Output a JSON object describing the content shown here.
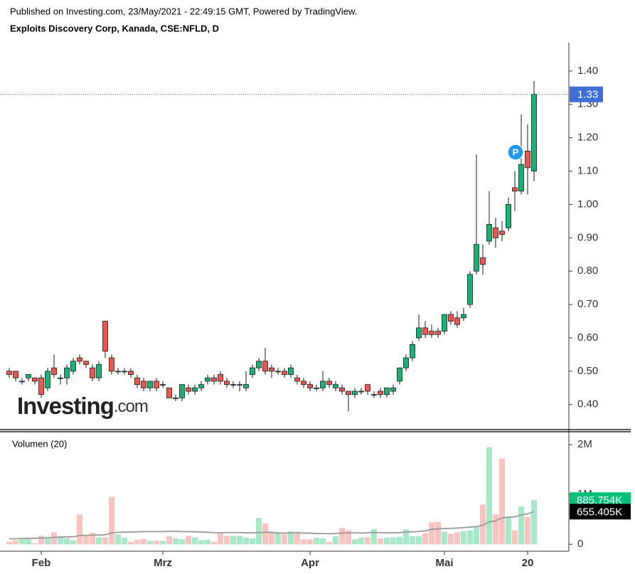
{
  "header": {
    "published": "Published on Investing.com, 23/May/2021 - 22:49:15 GMT, Powered by TradingView.",
    "title": "Exploits Discovery Corp, Kanada, CSE:NFLD, D"
  },
  "logo": {
    "main": "Investing",
    "suffix": ".com"
  },
  "annotation": "P",
  "chart_data": [
    {
      "type": "candlestick",
      "categories": [
        null,
        null,
        null,
        null,
        null,
        "Feb",
        null,
        null,
        null,
        null,
        null,
        null,
        null,
        null,
        null,
        null,
        null,
        null,
        null,
        null,
        null,
        null,
        null,
        null,
        "Mrz",
        null,
        null,
        null,
        null,
        null,
        null,
        null,
        null,
        null,
        null,
        null,
        null,
        null,
        null,
        null,
        null,
        null,
        null,
        null,
        null,
        null,
        null,
        "Apr",
        null,
        null,
        null,
        null,
        null,
        null,
        null,
        null,
        null,
        null,
        null,
        null,
        null,
        null,
        null,
        null,
        null,
        null,
        null,
        null,
        "Mai",
        null,
        null,
        null,
        null,
        null,
        null,
        null,
        null,
        null,
        null,
        null,
        null,
        "20",
        null
      ],
      "open": [
        0.5,
        0.5,
        0.47,
        0.48,
        0.48,
        0.48,
        0.45,
        0.51,
        0.48,
        0.48,
        0.5,
        0.54,
        0.53,
        0.51,
        0.48,
        0.65,
        0.54,
        0.5,
        0.5,
        0.5,
        0.48,
        0.47,
        0.45,
        0.47,
        0.46,
        0.45,
        0.42,
        0.42,
        0.45,
        0.44,
        0.45,
        0.47,
        0.48,
        0.49,
        0.47,
        0.46,
        0.46,
        0.45,
        0.49,
        0.51,
        0.53,
        0.51,
        0.5,
        0.5,
        0.49,
        0.48,
        0.47,
        0.46,
        0.45,
        0.45,
        0.47,
        0.45,
        0.45,
        0.44,
        0.43,
        0.44,
        0.46,
        0.43,
        0.44,
        0.43,
        0.44,
        0.47,
        0.51,
        0.54,
        0.6,
        0.63,
        0.62,
        0.62,
        0.62,
        0.67,
        0.66,
        0.66,
        0.7,
        0.8,
        0.84,
        0.89,
        0.93,
        0.92,
        0.93,
        1.05,
        1.04,
        1.16,
        1.1
      ],
      "high": [
        0.51,
        0.5,
        0.48,
        0.49,
        0.48,
        0.49,
        0.51,
        0.55,
        0.49,
        0.52,
        0.54,
        0.55,
        0.53,
        0.52,
        0.53,
        0.65,
        0.55,
        0.51,
        0.51,
        0.51,
        0.49,
        0.48,
        0.47,
        0.48,
        0.47,
        0.45,
        0.43,
        0.46,
        0.46,
        0.46,
        0.47,
        0.49,
        0.49,
        0.5,
        0.48,
        0.47,
        0.47,
        0.5,
        0.52,
        0.54,
        0.57,
        0.52,
        0.51,
        0.51,
        0.52,
        0.49,
        0.48,
        0.47,
        0.46,
        0.5,
        0.48,
        0.47,
        0.46,
        0.44,
        0.45,
        0.45,
        0.46,
        0.44,
        0.45,
        0.45,
        0.46,
        0.51,
        0.55,
        0.59,
        0.67,
        0.65,
        0.64,
        0.63,
        0.67,
        0.68,
        0.68,
        0.69,
        0.8,
        1.15,
        0.88,
        1.04,
        0.96,
        0.95,
        1.02,
        1.1,
        1.27,
        1.24,
        1.37
      ],
      "low": [
        0.48,
        0.47,
        0.46,
        0.47,
        0.46,
        0.42,
        0.44,
        0.48,
        0.46,
        0.46,
        0.49,
        0.52,
        0.51,
        0.47,
        0.47,
        0.54,
        0.49,
        0.49,
        0.49,
        0.48,
        0.45,
        0.44,
        0.44,
        0.44,
        0.45,
        0.42,
        0.41,
        0.41,
        0.43,
        0.43,
        0.44,
        0.46,
        0.46,
        0.46,
        0.45,
        0.45,
        0.44,
        0.44,
        0.48,
        0.5,
        0.49,
        0.48,
        0.49,
        0.48,
        0.48,
        0.46,
        0.45,
        0.44,
        0.44,
        0.44,
        0.45,
        0.44,
        0.43,
        0.38,
        0.42,
        0.43,
        0.43,
        0.42,
        0.42,
        0.42,
        0.43,
        0.46,
        0.5,
        0.53,
        0.59,
        0.6,
        0.6,
        0.6,
        0.61,
        0.64,
        0.63,
        0.65,
        0.69,
        0.79,
        0.79,
        0.88,
        0.87,
        0.89,
        0.92,
        0.98,
        1.03,
        1.03,
        1.07
      ],
      "close": [
        0.49,
        0.48,
        0.47,
        0.49,
        0.47,
        0.43,
        0.5,
        0.49,
        0.48,
        0.51,
        0.53,
        0.53,
        0.52,
        0.48,
        0.52,
        0.56,
        0.5,
        0.5,
        0.5,
        0.49,
        0.46,
        0.45,
        0.47,
        0.45,
        0.46,
        0.42,
        0.42,
        0.46,
        0.44,
        0.45,
        0.46,
        0.48,
        0.47,
        0.47,
        0.46,
        0.46,
        0.46,
        0.46,
        0.51,
        0.53,
        0.5,
        0.5,
        0.5,
        0.49,
        0.51,
        0.47,
        0.46,
        0.45,
        0.45,
        0.47,
        0.46,
        0.46,
        0.44,
        0.43,
        0.44,
        0.44,
        0.44,
        0.43,
        0.43,
        0.45,
        0.45,
        0.51,
        0.54,
        0.58,
        0.63,
        0.61,
        0.61,
        0.61,
        0.67,
        0.65,
        0.64,
        0.67,
        0.79,
        0.88,
        0.82,
        0.94,
        0.9,
        0.91,
        1.0,
        1.04,
        1.12,
        1.11,
        1.33
      ],
      "up_color": "#17b374",
      "down_color": "#f0554f",
      "ylim": [
        0.327,
        1.485
      ],
      "yticks": [
        {
          "value": 0.4,
          "label": "0.40"
        },
        {
          "value": 0.5,
          "label": "0.50"
        },
        {
          "value": 0.6,
          "label": "0.60"
        },
        {
          "value": 0.7,
          "label": "0.70"
        },
        {
          "value": 0.8,
          "label": "0.80"
        },
        {
          "value": 0.9,
          "label": "0.90"
        },
        {
          "value": 1.0,
          "label": "1.00"
        },
        {
          "value": 1.1,
          "label": "1.10"
        },
        {
          "value": 1.2,
          "label": "1.20"
        },
        {
          "value": 1.3,
          "label": "1.30"
        },
        {
          "value": 1.4,
          "label": "1.40"
        }
      ],
      "last_line_color": "#3d6fd6"
    },
    {
      "type": "bar",
      "title": "Volumen (20)",
      "series": [
        {
          "kind": "bar",
          "up_color": "#a6e9c9",
          "down_color": "#f9c4bf",
          "values": [
            50000,
            80000,
            100000,
            100000,
            20000,
            170000,
            150000,
            240000,
            140000,
            120000,
            80000,
            600000,
            170000,
            230000,
            140000,
            140000,
            950000,
            200000,
            130000,
            50000,
            90000,
            110000,
            70000,
            70000,
            70000,
            160000,
            120000,
            100000,
            170000,
            140000,
            80000,
            90000,
            50000,
            220000,
            170000,
            170000,
            170000,
            130000,
            120000,
            530000,
            420000,
            240000,
            240000,
            200000,
            260000,
            250000,
            100000,
            100000,
            130000,
            120000,
            50000,
            160000,
            330000,
            280000,
            100000,
            130000,
            140000,
            300000,
            120000,
            130000,
            140000,
            150000,
            300000,
            160000,
            160000,
            220000,
            440000,
            450000,
            250000,
            210000,
            240000,
            260000,
            280000,
            360000,
            800000,
            1950000,
            600000,
            1720000,
            550000,
            280000,
            760000,
            550000,
            885754
          ],
          "value_labels": [
            null,
            null,
            null,
            null,
            null,
            null,
            null,
            null,
            null,
            null,
            null,
            null,
            null,
            null,
            null,
            null,
            null,
            null,
            null,
            null,
            null,
            null,
            null,
            null,
            null,
            null,
            null,
            null,
            null,
            null,
            null,
            null,
            null,
            null,
            null,
            null,
            null,
            null,
            null,
            null,
            null,
            null,
            null,
            null,
            null,
            null,
            null,
            null,
            null,
            null,
            null,
            null,
            null,
            null,
            null,
            null,
            null,
            null,
            null,
            null,
            null,
            null,
            null,
            null,
            null,
            null,
            null,
            null,
            null,
            null,
            null,
            null,
            null,
            null,
            null,
            null,
            null,
            null,
            null,
            null,
            null,
            null,
            "885.754K"
          ],
          "label_color": "#00c176"
        },
        {
          "kind": "line",
          "color": "#9a9a9a",
          "values": [
            110000,
            110000,
            115000,
            120000,
            120000,
            125000,
            130000,
            140000,
            145000,
            150000,
            150000,
            175000,
            180000,
            185000,
            185000,
            190000,
            230000,
            240000,
            245000,
            245000,
            250000,
            255000,
            255000,
            255000,
            255000,
            260000,
            260000,
            255000,
            255000,
            250000,
            245000,
            240000,
            235000,
            230000,
            235000,
            235000,
            235000,
            230000,
            230000,
            235000,
            240000,
            240000,
            225000,
            225000,
            230000,
            230000,
            225000,
            225000,
            215000,
            215000,
            210000,
            215000,
            225000,
            230000,
            230000,
            225000,
            230000,
            235000,
            235000,
            230000,
            230000,
            235000,
            245000,
            250000,
            255000,
            270000,
            300000,
            310000,
            315000,
            320000,
            325000,
            335000,
            345000,
            355000,
            385000,
            450000,
            470000,
            530000,
            545000,
            550000,
            590000,
            610000,
            655405
          ],
          "value_labels": [
            null,
            null,
            null,
            null,
            null,
            null,
            null,
            null,
            null,
            null,
            null,
            null,
            null,
            null,
            null,
            null,
            null,
            null,
            null,
            null,
            null,
            null,
            null,
            null,
            null,
            null,
            null,
            null,
            null,
            null,
            null,
            null,
            null,
            null,
            null,
            null,
            null,
            null,
            null,
            null,
            null,
            null,
            null,
            null,
            null,
            null,
            null,
            null,
            null,
            null,
            null,
            null,
            null,
            null,
            null,
            null,
            null,
            null,
            null,
            null,
            null,
            null,
            null,
            null,
            null,
            null,
            null,
            null,
            null,
            null,
            null,
            null,
            null,
            null,
            null,
            null,
            null,
            null,
            null,
            null,
            null,
            null,
            "655.405K"
          ],
          "label_color": "#000000"
        }
      ],
      "ylim": [
        -140000,
        2260000
      ],
      "yticks": [
        0,
        {
          "value": 1000000,
          "label": "1M"
        },
        {
          "value": 2000000,
          "label": "2M"
        }
      ]
    }
  ]
}
